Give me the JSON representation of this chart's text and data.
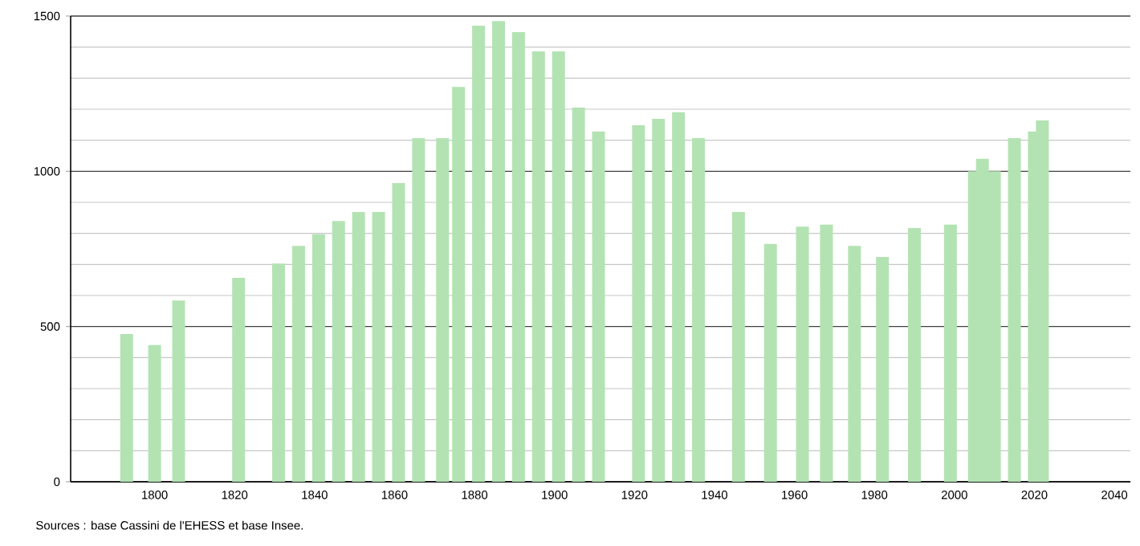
{
  "chart_data": {
    "type": "bar",
    "color": "#b3e3b3",
    "x": [
      1793,
      1800,
      1806,
      1821,
      1831,
      1836,
      1841,
      1846,
      1851,
      1856,
      1861,
      1866,
      1872,
      1876,
      1881,
      1886,
      1891,
      1896,
      1901,
      1906,
      1911,
      1921,
      1926,
      1931,
      1936,
      1946,
      1954,
      1962,
      1968,
      1975,
      1982,
      1990,
      1999,
      2005,
      2007,
      2010,
      2015,
      2020,
      2022
    ],
    "values": [
      476,
      440,
      584,
      657,
      703,
      760,
      797,
      840,
      869,
      869,
      962,
      1107,
      1107,
      1272,
      1469,
      1484,
      1448,
      1386,
      1386,
      1205,
      1128,
      1148,
      1169,
      1190,
      1107,
      869,
      766,
      822,
      828,
      760,
      724,
      817,
      828,
      1000,
      1040,
      1000,
      1107,
      1128,
      1164
    ],
    "xlim": [
      1779,
      2044
    ],
    "ylim": [
      0,
      1500
    ],
    "xticks": [
      1800,
      1820,
      1840,
      1860,
      1880,
      1900,
      1920,
      1940,
      1960,
      1980,
      2000,
      2020,
      2040
    ],
    "yticks": [
      0,
      500,
      1000,
      1500
    ],
    "grid": "y",
    "annotations": [
      "Sources : base Cassini de l'EHESS et base Insee."
    ]
  }
}
